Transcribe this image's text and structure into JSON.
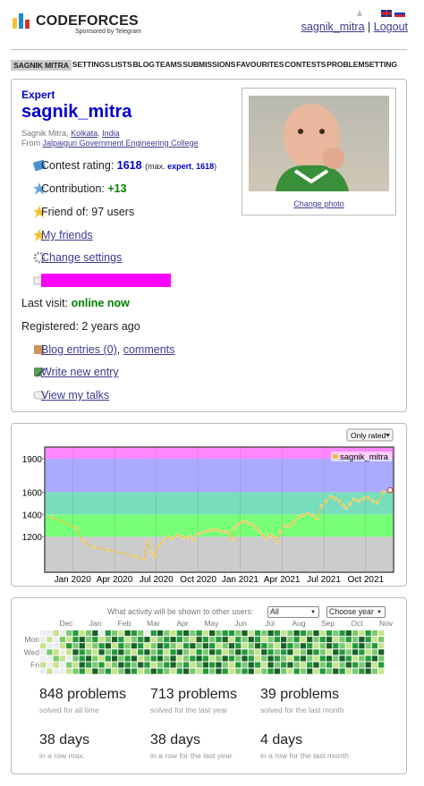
{
  "header": {
    "logo": "CODEFORCES",
    "sponsor": "Sponsored by Telegram",
    "user_link": "sagnik_mitra",
    "separator": "|",
    "logout": "Logout"
  },
  "menu": [
    "SAGNIK MITRA",
    "SETTINGS",
    "LISTS",
    "BLOG",
    "TEAMS",
    "SUBMISSIONS",
    "FAVOURITES",
    "CONTESTS",
    "PROBLEMSETTING"
  ],
  "profile": {
    "rank": "Expert",
    "handle": "sagnik_mitra",
    "name": "Sagnik Mitra",
    "comma": ",",
    "city": "Kolkata",
    "country": "India",
    "from_label": "From",
    "organization": "Jalpaiguri Government Engineering College",
    "change_photo": "Change photo",
    "rating_label": "Contest rating:",
    "rating": 1618,
    "max_prefix": "(max.",
    "max_rank": "expert",
    "max_sep": ",",
    "max_rating": 1618,
    "max_suffix": ")",
    "contribution_label": "Contribution:",
    "contribution": "+13",
    "friends": "Friend of: 97 users",
    "my_friends": "My friends",
    "change_settings": "Change settings",
    "last_visit_label": "Last visit:",
    "last_visit": "online now",
    "registered": "Registered: 2 years ago",
    "blog_entries": "Blog entries (0)",
    "comments": "comments",
    "write_entry": "Write new entry",
    "talks": "View my talks"
  },
  "chart_data": {
    "type": "line",
    "filter": "Only rated",
    "x": [
      "2019-11",
      "2020-01",
      "2020-01",
      "2020-02",
      "2020-03",
      "2020-05",
      "2020-06",
      "2020-06",
      "2020-06",
      "2020-06",
      "2020-07",
      "2020-07",
      "2020-07",
      "2020-08",
      "2020-08",
      "2020-08",
      "2020-09",
      "2020-09",
      "2020-09",
      "2020-09",
      "2020-10",
      "2020-10",
      "2020-10",
      "2020-11",
      "2020-11",
      "2020-11",
      "2020-12",
      "2020-12",
      "2020-12",
      "2020-12",
      "2021-01",
      "2021-01",
      "2021-01",
      "2021-02",
      "2021-02",
      "2021-02",
      "2021-02",
      "2021-03",
      "2021-03",
      "2021-03",
      "2021-03",
      "2021-04",
      "2021-04",
      "2021-04",
      "2021-05",
      "2021-05",
      "2021-05",
      "2021-06",
      "2021-06",
      "2021-06",
      "2021-07",
      "2021-07",
      "2021-07",
      "2021-08",
      "2021-08",
      "2021-08",
      "2021-08",
      "2021-09",
      "2021-09",
      "2021-09",
      "2021-10",
      "2021-10",
      "2021-10",
      "2021-11",
      "2021-11"
    ],
    "series": [
      {
        "name": "sagnik_mitra",
        "color": "#edc240",
        "values": [
          1376,
          1280,
          1160,
          1104,
          1080,
          1024,
          992,
          1160,
          1056,
          1024,
          1120,
          1160,
          1200,
          1184,
          1216,
          1200,
          1184,
          1200,
          1168,
          1216,
          1232,
          1248,
          1256,
          1264,
          1256,
          1240,
          1248,
          1168,
          1280,
          1312,
          1336,
          1328,
          1312,
          1280,
          1248,
          1216,
          1184,
          1216,
          1200,
          1152,
          1240,
          1296,
          1296,
          1328,
          1376,
          1392,
          1408,
          1392,
          1360,
          1472,
          1520,
          1560,
          1544,
          1520,
          1480,
          1456,
          1496,
          1536,
          1520,
          1544,
          1552,
          1520,
          1504,
          1600,
          1618
        ]
      }
    ],
    "xlim": [
      "2019-11",
      "2021-11"
    ],
    "xticks": [
      {
        "value": "2020-01",
        "label": "Jan 2020"
      },
      {
        "value": "2020-04",
        "label": "Apr 2020"
      },
      {
        "value": "2020-07",
        "label": "Jul 2020"
      },
      {
        "value": "2020-10",
        "label": "Oct 2020"
      },
      {
        "value": "2021-01",
        "label": "Jan 2021"
      },
      {
        "value": "2021-04",
        "label": "Apr 2021"
      },
      {
        "value": "2021-07",
        "label": "Jul 2021"
      },
      {
        "value": "2021-10",
        "label": "Oct 2021"
      }
    ],
    "ylim": [
      880,
      2005
    ],
    "yticks": [
      1200,
      1400,
      1600,
      1900
    ],
    "bands": [
      {
        "to": 1200,
        "color": "#cccccc"
      },
      {
        "to": 1400,
        "color": "#77ff77"
      },
      {
        "to": 1600,
        "color": "#77ddbb"
      },
      {
        "to": 1900,
        "color": "#aaaaff"
      },
      {
        "to": 2100,
        "color": "#ff88ff"
      }
    ],
    "legend": "top-right"
  },
  "activity": {
    "prompt": "What activity will be shown to other users:",
    "visibility": "All",
    "year": "Choose year",
    "months": [
      "Dec",
      "Jan",
      "Feb",
      "Mar",
      "Apr",
      "May",
      "Jun",
      "Jul",
      "Aug",
      "Sep",
      "Oct",
      "Nov"
    ],
    "days": [
      "Mon",
      "Wed",
      "Fri"
    ],
    "colors": [
      "#ebedf0",
      "#c6e48b",
      "#7bc96f",
      "#239a3b",
      "#196127"
    ],
    "levels": [
      [
        0,
        0,
        1,
        0,
        2,
        3,
        1,
        2,
        4,
        0,
        3,
        2,
        1,
        4,
        3,
        2,
        0,
        3,
        4,
        2,
        1,
        3,
        4,
        2,
        3,
        1,
        4,
        2,
        3,
        3,
        2,
        4,
        1,
        3,
        2,
        4,
        3,
        1,
        2,
        4,
        3,
        2,
        4,
        1,
        3,
        2,
        3,
        4,
        2,
        1,
        3,
        2,
        1
      ],
      [
        0,
        1,
        0,
        2,
        1,
        3,
        4,
        2,
        3,
        1,
        2,
        4,
        3,
        1,
        2,
        3,
        4,
        1,
        2,
        3,
        4,
        3,
        2,
        1,
        4,
        3,
        2,
        3,
        4,
        1,
        3,
        2,
        4,
        3,
        1,
        2,
        3,
        4,
        2,
        3,
        1,
        4,
        2,
        3,
        4,
        1,
        2,
        3,
        2,
        4,
        3,
        1,
        2
      ],
      [
        1,
        0,
        0,
        1,
        3,
        2,
        4,
        1,
        2,
        3,
        4,
        1,
        3,
        2,
        4,
        3,
        1,
        2,
        4,
        3,
        2,
        1,
        3,
        4,
        2,
        4,
        3,
        1,
        2,
        4,
        3,
        1,
        2,
        4,
        3,
        2,
        1,
        4,
        3,
        2,
        4,
        3,
        1,
        2,
        4,
        3,
        2,
        1,
        3,
        4,
        2,
        3,
        1
      ],
      [
        0,
        2,
        1,
        0,
        1,
        4,
        3,
        2,
        1,
        4,
        2,
        3,
        4,
        2,
        1,
        3,
        4,
        2,
        3,
        1,
        3,
        4,
        2,
        1,
        3,
        2,
        4,
        3,
        1,
        2,
        4,
        3,
        2,
        1,
        4,
        3,
        2,
        3,
        4,
        1,
        2,
        4,
        3,
        2,
        1,
        4,
        3,
        2,
        4,
        3,
        1,
        2,
        4
      ],
      [
        0,
        0,
        2,
        1,
        0,
        2,
        3,
        4,
        2,
        1,
        3,
        4,
        2,
        3,
        4,
        1,
        2,
        3,
        4,
        2,
        4,
        1,
        2,
        3,
        4,
        3,
        1,
        2,
        4,
        3,
        2,
        4,
        3,
        1,
        2,
        4,
        3,
        2,
        1,
        3,
        4,
        2,
        1,
        3,
        4,
        2,
        4,
        3,
        1,
        2,
        3,
        4,
        2
      ],
      [
        1,
        0,
        1,
        0,
        2,
        1,
        4,
        3,
        2,
        3,
        1,
        2,
        4,
        3,
        2,
        4,
        3,
        1,
        2,
        3,
        4,
        2,
        3,
        1,
        2,
        4,
        3,
        4,
        2,
        1,
        3,
        2,
        4,
        3,
        1,
        4,
        2,
        3,
        4,
        2,
        1,
        3,
        4,
        2,
        3,
        1,
        2,
        4,
        3,
        2,
        4,
        1,
        3
      ],
      [
        0,
        1,
        0,
        0,
        1,
        2,
        3,
        1,
        4,
        2,
        3,
        1,
        2,
        4,
        3,
        1,
        2,
        4,
        3,
        2,
        1,
        3,
        4,
        2,
        1,
        3,
        2,
        4,
        3,
        1,
        2,
        3,
        4,
        1,
        2,
        3,
        4,
        2,
        1,
        3,
        2,
        4,
        1,
        3,
        2,
        4,
        3,
        1,
        2,
        3,
        4,
        2,
        1
      ]
    ]
  },
  "stats": [
    {
      "value": "848 problems",
      "caption": "solved for all time"
    },
    {
      "value": "713 problems",
      "caption": "solved for the last year"
    },
    {
      "value": "39 problems",
      "caption": "solved for the last month"
    },
    {
      "value": "38 days",
      "caption": "in a row max."
    },
    {
      "value": "38 days",
      "caption": "in a row for the last year"
    },
    {
      "value": "4 days",
      "caption": "in a row for the last month"
    }
  ]
}
